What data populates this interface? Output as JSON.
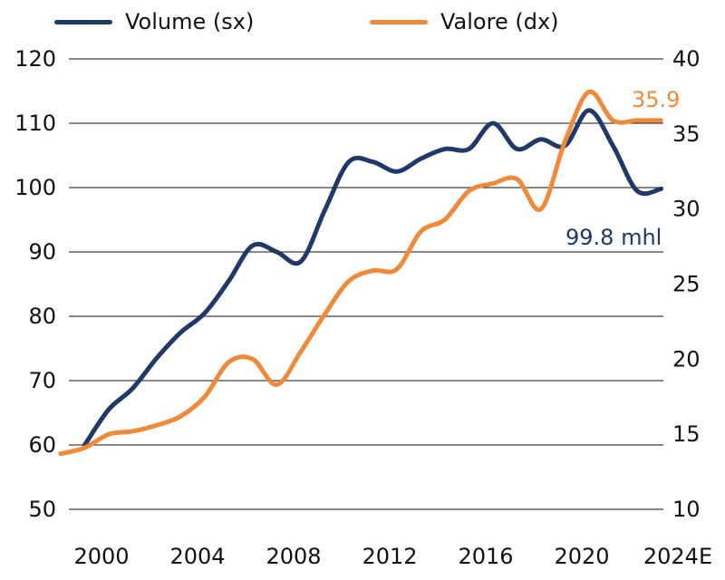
{
  "chart_data": {
    "type": "line",
    "dual_axis": true,
    "legend": {
      "placement": "top"
    },
    "grid": true,
    "x_ticks": [
      "2000",
      "2004",
      "2008",
      "2012",
      "2016",
      "2020",
      "2024E"
    ],
    "y_left": {
      "ylim": [
        50,
        120
      ],
      "ticks": [
        "50",
        "60",
        "70",
        "80",
        "90",
        "100",
        "110",
        "120"
      ]
    },
    "y_right": {
      "ylim": [
        10,
        40
      ],
      "ticks": [
        "10",
        "15",
        "20",
        "25",
        "30",
        "35",
        "40"
      ]
    },
    "series": [
      {
        "name": "Volume (sx)",
        "axis": "left",
        "color": "#1f3a68",
        "x": [
          1999.3,
          2000.3,
          2001.3,
          2002.3,
          2003.3,
          2004.3,
          2005.3,
          2006.3,
          2007.3,
          2008.3,
          2009.3,
          2010.3,
          2011.3,
          2012.3,
          2013.3,
          2014.3,
          2015.3,
          2016.3,
          2017.3,
          2018.3,
          2019.3,
          2020.3,
          2021.3,
          2022.3,
          2023.3
        ],
        "values": [
          60.0,
          65.5,
          68.8,
          73.5,
          77.5,
          80.5,
          85.5,
          91.0,
          90.0,
          88.5,
          96.5,
          104.0,
          104.0,
          102.5,
          104.5,
          106.0,
          106.0,
          110.0,
          106.0,
          107.5,
          106.5,
          112.0,
          106.5,
          99.5,
          99.8
        ]
      },
      {
        "name": "Valore (dx)",
        "axis": "right",
        "color": "#f08a3a",
        "x": [
          1998.3,
          1999.3,
          2000.3,
          2001.3,
          2002.3,
          2003.3,
          2004.3,
          2005.3,
          2006.3,
          2007.3,
          2008.3,
          2009.3,
          2010.3,
          2011.3,
          2012.3,
          2013.3,
          2014.3,
          2015.3,
          2016.3,
          2017.3,
          2018.3,
          2019.3,
          2020.3,
          2021.3,
          2022.3,
          2023.3
        ],
        "values": [
          13.7,
          14.1,
          15.0,
          15.2,
          15.6,
          16.2,
          17.5,
          19.8,
          20.0,
          18.3,
          20.5,
          23.0,
          25.2,
          25.9,
          26.0,
          28.5,
          29.3,
          31.2,
          31.7,
          32.0,
          30.0,
          34.5,
          37.8,
          35.9,
          35.9,
          35.9
        ]
      }
    ],
    "annotations": [
      {
        "text": "35.9",
        "series": "Valore (dx)"
      },
      {
        "text": "99.8 mhl",
        "series": "Volume (sx)"
      }
    ]
  }
}
